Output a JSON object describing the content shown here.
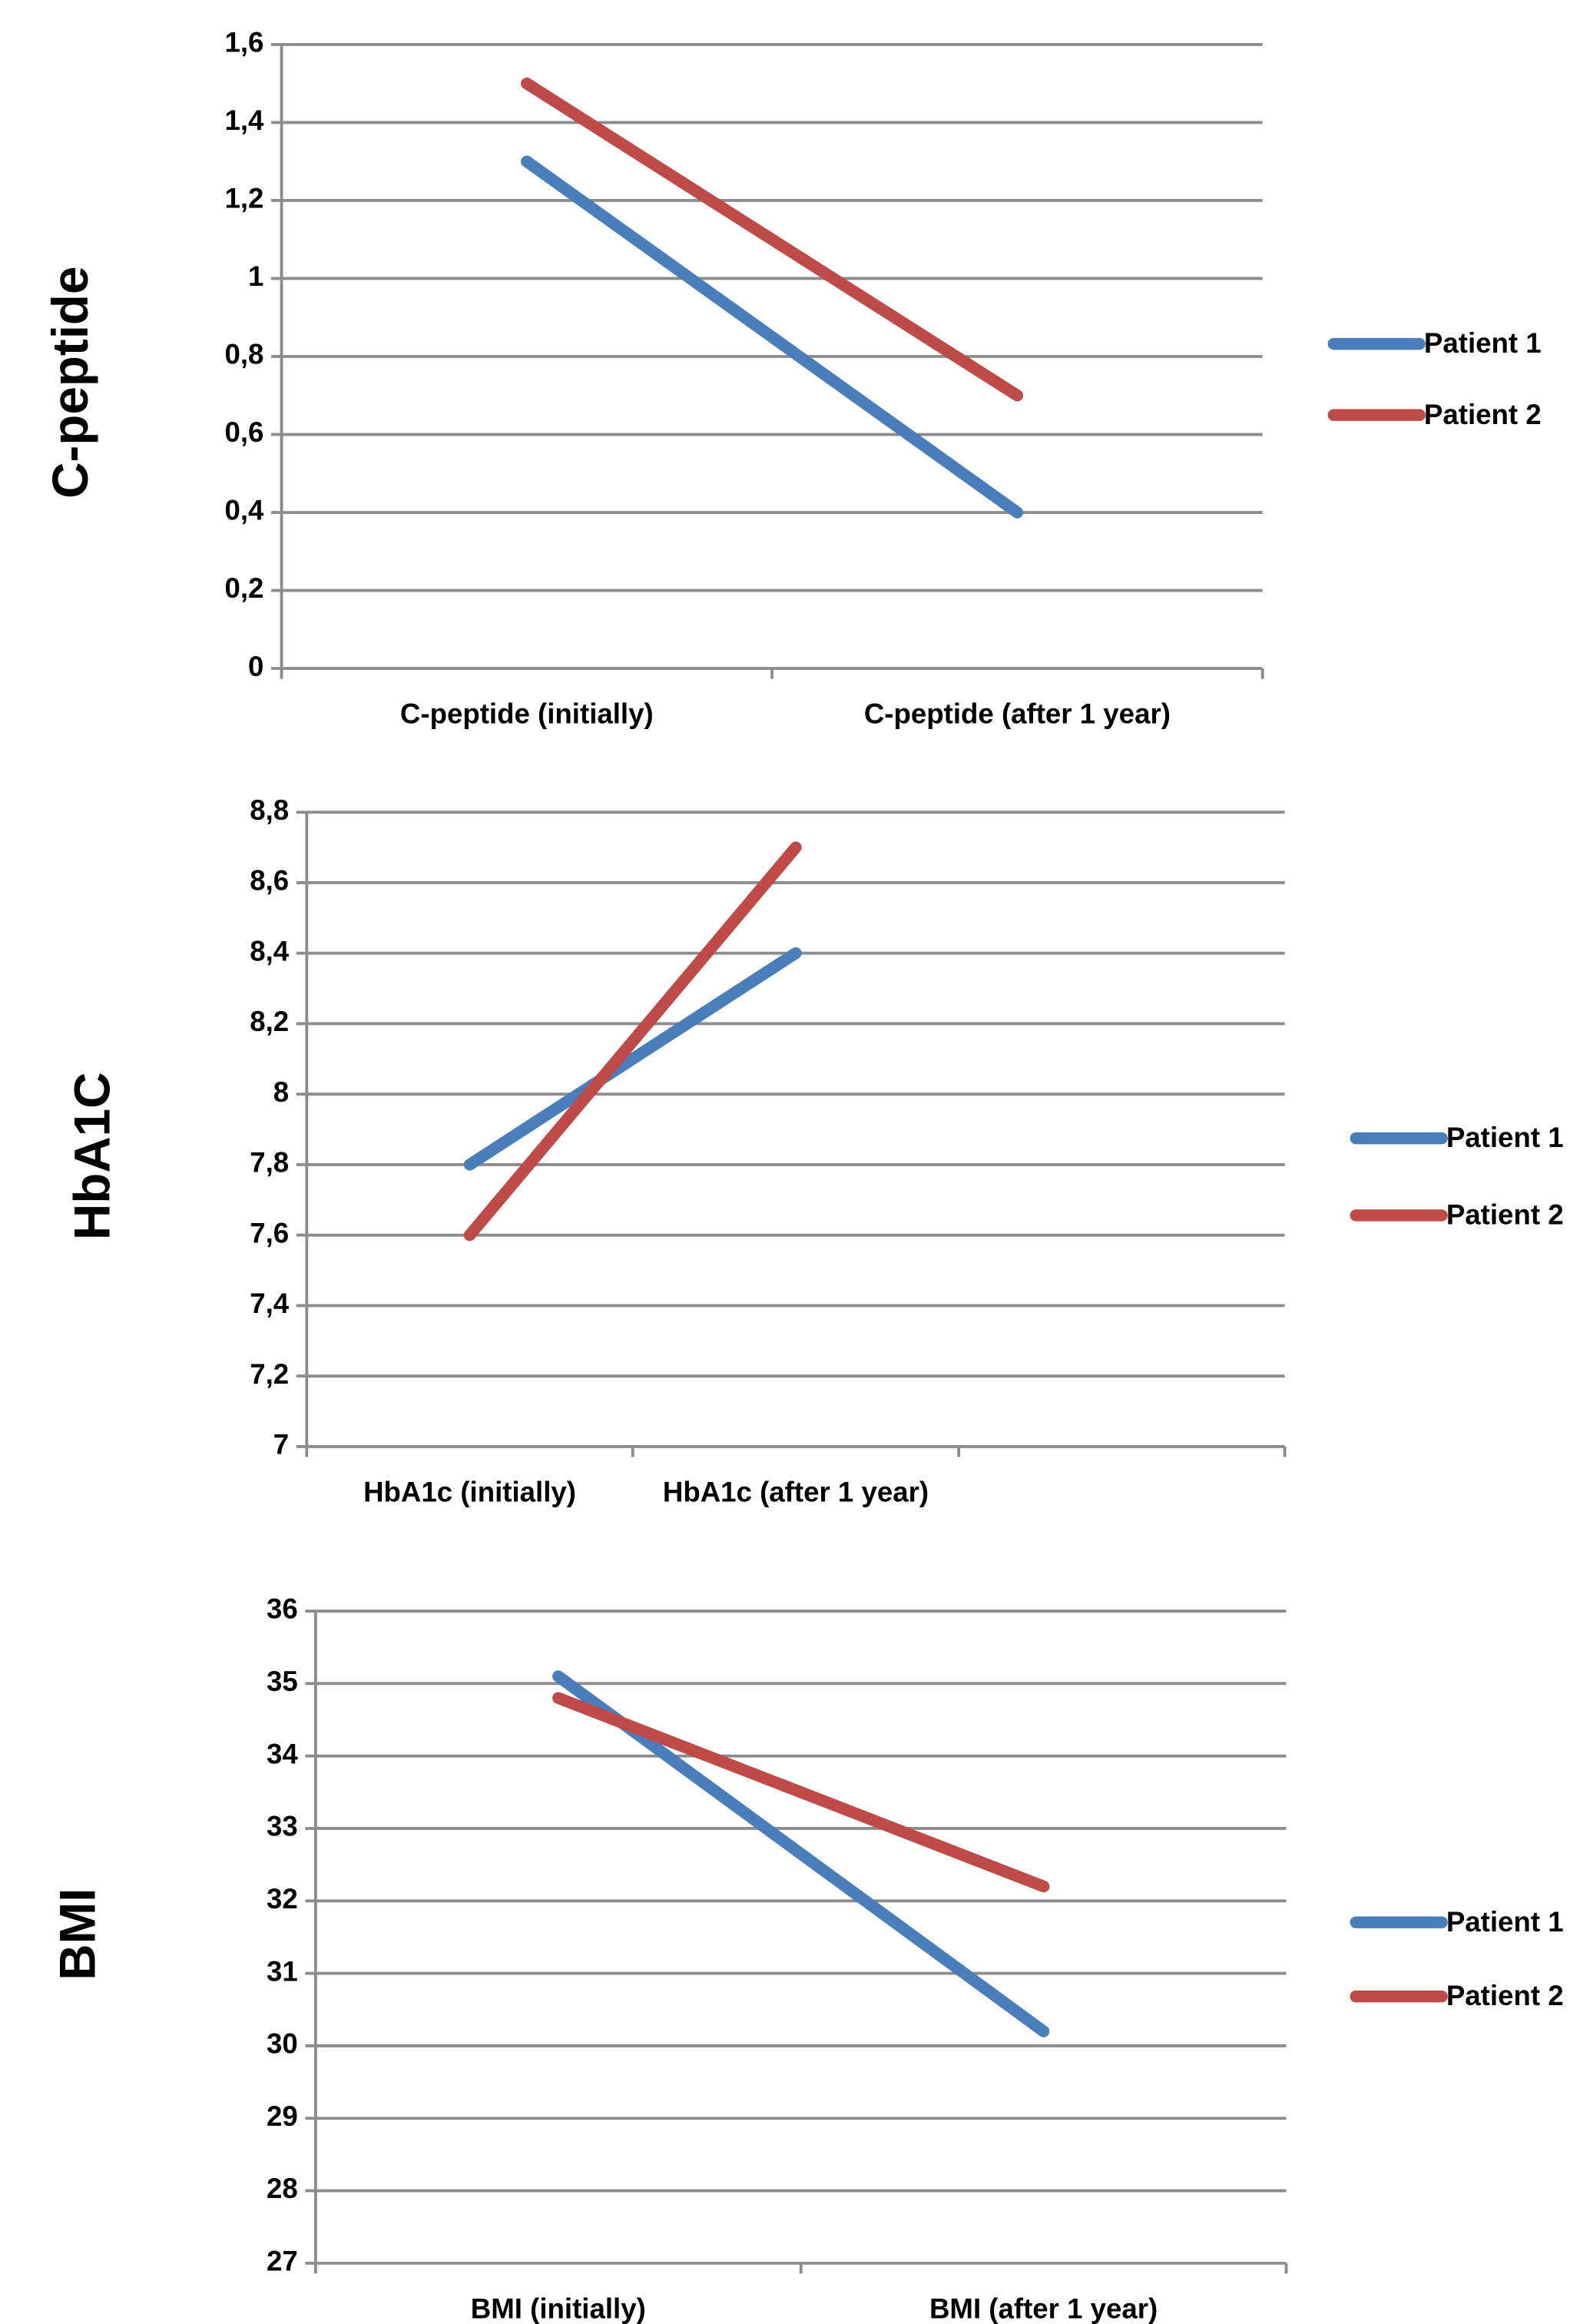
{
  "chart_data": [
    {
      "type": "line",
      "y_label": "C-peptide",
      "categories": [
        "C-peptide (initially)",
        "C-peptide (after 1 year)"
      ],
      "series": [
        {
          "name": "Patient 1",
          "color": "#4a7ebb",
          "values": [
            1.3,
            0.4
          ]
        },
        {
          "name": "Patient 2",
          "color": "#be4b48",
          "values": [
            1.5,
            0.7
          ]
        }
      ],
      "ylim": [
        0,
        1.6
      ],
      "yticks": [
        0,
        {
          "value": 0.2,
          "label": "0,2"
        },
        {
          "value": 0.4,
          "label": "0,4"
        },
        {
          "value": 0.6,
          "label": "0,6"
        },
        {
          "value": 0.8,
          "label": "0,8"
        },
        1,
        {
          "value": 1.2,
          "label": "1,2"
        },
        {
          "value": 1.4,
          "label": "1,4"
        },
        {
          "value": 1.6,
          "label": "1,6"
        }
      ],
      "grid": true,
      "legend": "right"
    },
    {
      "type": "line",
      "y_label": "HbA1C",
      "categories": [
        "HbA1c (initially)",
        "HbA1c (after 1 year)",
        null
      ],
      "series": [
        {
          "name": "Patient 1",
          "color": "#4a7ebb",
          "values": [
            7.8,
            8.4,
            null
          ]
        },
        {
          "name": "Patient 2",
          "color": "#be4b48",
          "values": [
            7.6,
            8.7,
            null
          ]
        }
      ],
      "ylim": [
        7,
        8.8
      ],
      "yticks": [
        7,
        {
          "value": 7.2,
          "label": "7,2"
        },
        {
          "value": 7.4,
          "label": "7,4"
        },
        {
          "value": 7.6,
          "label": "7,6"
        },
        {
          "value": 7.8,
          "label": "7,8"
        },
        8,
        {
          "value": 8.2,
          "label": "8,2"
        },
        {
          "value": 8.4,
          "label": "8,4"
        },
        {
          "value": 8.6,
          "label": "8,6"
        },
        {
          "value": 8.8,
          "label": "8,8"
        }
      ],
      "grid": true,
      "legend": "right"
    },
    {
      "type": "line",
      "y_label": "BMI",
      "categories": [
        "BMI (initially)",
        "BMI (after 1 year)"
      ],
      "series": [
        {
          "name": "Patient 1",
          "color": "#4a7ebb",
          "values": [
            35.1,
            30.2
          ]
        },
        {
          "name": "Patient 2",
          "color": "#be4b48",
          "values": [
            34.8,
            32.2
          ]
        }
      ],
      "ylim": [
        27,
        36
      ],
      "yticks": [
        27,
        28,
        29,
        30,
        31,
        32,
        33,
        34,
        35,
        36
      ],
      "grid": true,
      "legend": "right"
    }
  ]
}
